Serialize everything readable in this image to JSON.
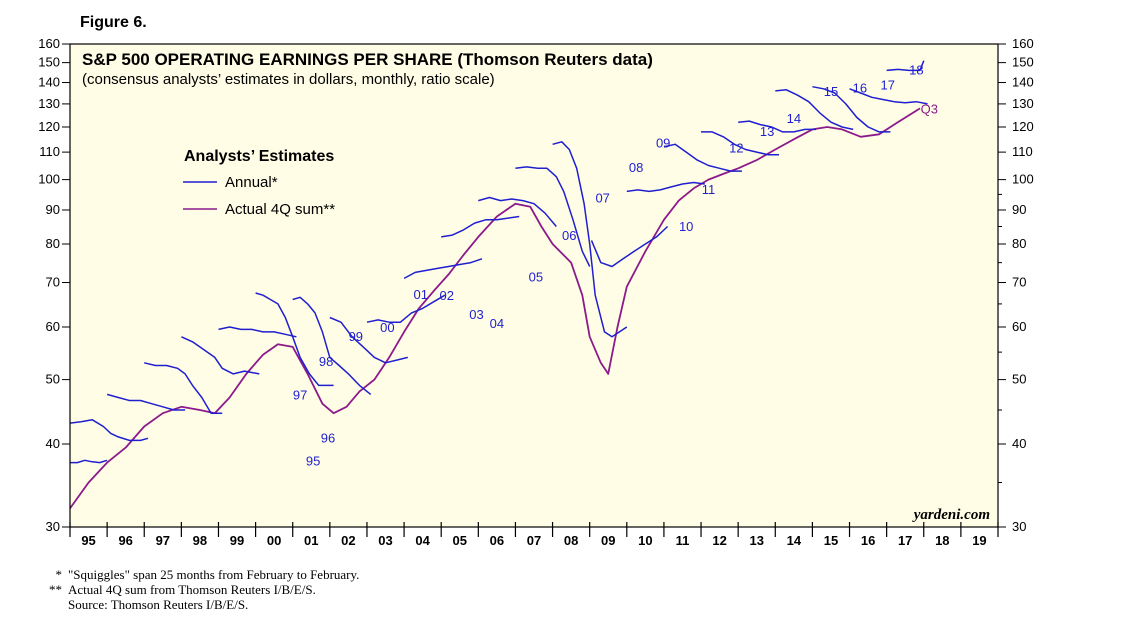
{
  "figure_label": "Figure 6.",
  "chart_data": {
    "type": "line",
    "title": "S&P 500 OPERATING EARNINGS PER SHARE (Thomson Reuters data)",
    "subtitle": "(consensus analysts’ estimates in dollars, monthly, ratio scale)",
    "legend_title": "Analysts’ Estimates",
    "legend": [
      {
        "name": "Annual*",
        "color": "#1f1fd0"
      },
      {
        "name": "Actual 4Q sum**",
        "color": "#8b1a8b"
      }
    ],
    "x_range": [
      1995.0,
      2020.0
    ],
    "y_range": [
      30,
      160
    ],
    "y_scale": "log",
    "y_ticks": [
      30,
      40,
      50,
      60,
      70,
      80,
      90,
      100,
      110,
      120,
      130,
      140,
      150,
      160
    ],
    "x_tick_labels": [
      "95",
      "96",
      "97",
      "98",
      "99",
      "00",
      "01",
      "02",
      "03",
      "04",
      "05",
      "06",
      "07",
      "08",
      "09",
      "10",
      "11",
      "12",
      "13",
      "14",
      "15",
      "16",
      "17",
      "18",
      "19"
    ],
    "watermark": "yardeni.com",
    "colors": {
      "annual": "#1f1fd0",
      "actual": "#8b1a8b",
      "plot_bg": "#fffde6"
    },
    "actual_series": {
      "name": "Actual 4Q sum**",
      "x": [
        1995.0,
        1995.5,
        1996.0,
        1996.5,
        1997.0,
        1997.5,
        1998.0,
        1998.5,
        1998.9,
        1999.3,
        1999.75,
        2000.2,
        2000.6,
        2001.0,
        2001.4,
        2001.8,
        2002.1,
        2002.45,
        2002.8,
        2003.2,
        2003.6,
        2004.0,
        2004.4,
        2004.8,
        2005.2,
        2005.6,
        2006.0,
        2006.5,
        2007.0,
        2007.4,
        2007.7,
        2008.0,
        2008.5,
        2008.8,
        2009.0,
        2009.3,
        2009.5,
        2009.75,
        2010.0,
        2010.5,
        2011.0,
        2011.4,
        2011.8,
        2012.2,
        2012.6,
        2013.0,
        2013.5,
        2014.0,
        2014.5,
        2015.0,
        2015.4,
        2015.8,
        2016.3,
        2016.8,
        2017.3,
        2017.9
      ],
      "values": [
        32,
        35,
        37.5,
        39.5,
        42.5,
        44.5,
        45.5,
        45,
        44.5,
        47,
        51,
        54.5,
        56.5,
        56,
        51,
        46,
        44.5,
        45.5,
        48,
        50,
        54,
        59,
        64,
        68,
        72,
        77,
        82,
        88,
        92,
        91,
        85,
        80,
        75,
        67,
        58,
        53,
        51,
        60,
        69,
        78,
        87,
        93,
        97,
        100,
        102,
        104,
        107,
        111,
        115,
        119,
        120,
        119,
        116,
        117,
        122,
        128
      ]
    },
    "annual_series": [
      {
        "name": "95",
        "x": [
          1995.0,
          1995.2,
          1995.4,
          1995.6,
          1995.8,
          1996.0
        ],
        "values": [
          37.5,
          37.5,
          37.8,
          37.6,
          37.5,
          37.8
        ]
      },
      {
        "name": "96",
        "x": [
          1995.0,
          1995.3,
          1995.6,
          1995.9,
          1996.1,
          1996.3,
          1996.6,
          1996.9,
          1997.1
        ],
        "values": [
          43,
          43.2,
          43.5,
          42.5,
          41.5,
          41,
          40.5,
          40.5,
          40.8
        ]
      },
      {
        "name": "97",
        "x": [
          1996.0,
          1996.3,
          1996.6,
          1996.9,
          1997.2,
          1997.5,
          1997.8,
          1998.1
        ],
        "values": [
          47.5,
          47,
          46.5,
          46.5,
          46,
          45.5,
          45,
          45
        ]
      },
      {
        "name": "98",
        "x": [
          1997.0,
          1997.3,
          1997.6,
          1997.9,
          1998.1,
          1998.3,
          1998.55,
          1998.8,
          1999.1
        ],
        "values": [
          53,
          52.5,
          52.5,
          52,
          51,
          49,
          47,
          44.5,
          44.5
        ]
      },
      {
        "name": "99",
        "x": [
          1998.0,
          1998.3,
          1998.6,
          1998.9,
          1999.1,
          1999.4,
          1999.7,
          2000.1
        ],
        "values": [
          58,
          57,
          55.5,
          54,
          52,
          51,
          51.5,
          51
        ]
      },
      {
        "name": "00",
        "x": [
          1999.0,
          1999.3,
          1999.6,
          1999.9,
          2000.2,
          2000.5,
          2000.8,
          2001.1
        ],
        "values": [
          59.5,
          60,
          59.5,
          59.5,
          59,
          59,
          58.5,
          58
        ]
      },
      {
        "name": "01",
        "x": [
          2000.0,
          2000.2,
          2000.4,
          2000.6,
          2000.8,
          2001.0,
          2001.2,
          2001.45,
          2001.7,
          2002.1
        ],
        "values": [
          67.5,
          67,
          66,
          65,
          62,
          58,
          54,
          51,
          49,
          49
        ]
      },
      {
        "name": "02",
        "x": [
          2001.0,
          2001.2,
          2001.4,
          2001.6,
          2001.8,
          2002.0,
          2002.25,
          2002.5,
          2002.8,
          2003.1
        ],
        "values": [
          66,
          66.5,
          65,
          63,
          59,
          54,
          52.5,
          51,
          49,
          47.5
        ]
      },
      {
        "name": "03",
        "x": [
          2002.0,
          2002.3,
          2002.6,
          2002.9,
          2003.2,
          2003.5,
          2003.8,
          2004.1
        ],
        "values": [
          62,
          61,
          58,
          56,
          54,
          53,
          53.5,
          54
        ]
      },
      {
        "name": "04",
        "x": [
          2003.0,
          2003.3,
          2003.6,
          2003.9,
          2004.2,
          2004.5,
          2004.8,
          2005.1
        ],
        "values": [
          61,
          61.5,
          61,
          61,
          63,
          64,
          65.5,
          67
        ]
      },
      {
        "name": "05",
        "x": [
          2004.0,
          2004.3,
          2004.6,
          2004.9,
          2005.2,
          2005.5,
          2005.8,
          2006.1
        ],
        "values": [
          71,
          72.5,
          73,
          73.5,
          74,
          74.5,
          75,
          76
        ]
      },
      {
        "name": "06",
        "x": [
          2005.0,
          2005.3,
          2005.6,
          2005.9,
          2006.2,
          2006.5,
          2006.8,
          2007.1
        ],
        "values": [
          82,
          82.5,
          84,
          86,
          87,
          87,
          87.5,
          88
        ]
      },
      {
        "name": "07",
        "x": [
          2006.0,
          2006.3,
          2006.6,
          2006.9,
          2007.2,
          2007.5,
          2007.8,
          2008.1
        ],
        "values": [
          93,
          94,
          93,
          93.5,
          93,
          92,
          89,
          85
        ]
      },
      {
        "name": "08",
        "x": [
          2007.0,
          2007.3,
          2007.6,
          2007.85,
          2008.1,
          2008.3,
          2008.55,
          2008.8,
          2009.0
        ],
        "values": [
          104,
          104.5,
          104,
          104,
          101,
          96,
          87,
          78,
          74
        ]
      },
      {
        "name": "09",
        "x": [
          2008.0,
          2008.25,
          2008.45,
          2008.65,
          2008.85,
          2009.0,
          2009.15,
          2009.4,
          2009.6,
          2010.0
        ],
        "values": [
          113,
          114,
          111,
          104,
          92,
          80,
          67,
          59,
          58,
          60
        ]
      },
      {
        "name": "10",
        "x": [
          2009.05,
          2009.3,
          2009.6,
          2009.9,
          2010.2,
          2010.5,
          2010.8,
          2011.1
        ],
        "values": [
          81,
          75,
          74,
          76,
          78,
          80,
          82,
          85
        ]
      },
      {
        "name": "11",
        "x": [
          2010.0,
          2010.3,
          2010.6,
          2010.9,
          2011.2,
          2011.5,
          2011.8,
          2012.1
        ],
        "values": [
          96,
          96.5,
          96,
          96.5,
          97.5,
          98.5,
          99,
          98.5
        ]
      },
      {
        "name": "12",
        "x": [
          2011.0,
          2011.3,
          2011.6,
          2011.9,
          2012.2,
          2012.5,
          2012.8,
          2013.1
        ],
        "values": [
          112,
          113,
          110,
          107,
          105,
          104,
          103,
          103
        ]
      },
      {
        "name": "13",
        "x": [
          2012.0,
          2012.3,
          2012.6,
          2012.9,
          2013.2,
          2013.5,
          2013.8,
          2014.1
        ],
        "values": [
          118,
          118,
          116,
          113,
          111,
          110,
          109,
          109
        ]
      },
      {
        "name": "14",
        "x": [
          2013.0,
          2013.3,
          2013.6,
          2013.9,
          2014.2,
          2014.5,
          2014.8,
          2015.1
        ],
        "values": [
          122,
          122.5,
          121,
          120,
          118,
          118,
          119,
          119
        ]
      },
      {
        "name": "15",
        "x": [
          2014.0,
          2014.3,
          2014.6,
          2014.9,
          2015.2,
          2015.5,
          2015.8,
          2016.1
        ],
        "values": [
          136,
          136.5,
          134,
          131,
          126,
          122,
          120,
          119
        ]
      },
      {
        "name": "16",
        "x": [
          2015.0,
          2015.3,
          2015.6,
          2015.9,
          2016.2,
          2016.5,
          2016.8,
          2017.1
        ],
        "values": [
          138,
          137,
          135,
          130,
          124,
          120,
          118,
          118
        ]
      },
      {
        "name": "17",
        "x": [
          2016.0,
          2016.3,
          2016.6,
          2016.9,
          2017.2,
          2017.5,
          2017.8,
          2018.1
        ],
        "values": [
          137,
          135,
          133,
          132,
          131,
          130.5,
          131,
          130
        ]
      },
      {
        "name": "18",
        "x": [
          2017.0,
          2017.3,
          2017.6,
          2017.9,
          2018.0
        ],
        "values": [
          146,
          146.5,
          146,
          146,
          151
        ]
      }
    ],
    "series_labels": [
      {
        "text": "95",
        "x": 2001.55,
        "y": 37.8
      },
      {
        "text": "96",
        "x": 2001.95,
        "y": 40.9
      },
      {
        "text": "97",
        "x": 2001.2,
        "y": 47.5
      },
      {
        "text": "98",
        "x": 2001.9,
        "y": 53.3
      },
      {
        "text": "99",
        "x": 2002.7,
        "y": 58.2
      },
      {
        "text": "00",
        "x": 2003.55,
        "y": 60.0
      },
      {
        "text": "01",
        "x": 2004.45,
        "y": 67.3
      },
      {
        "text": "02",
        "x": 2005.15,
        "y": 67.0
      },
      {
        "text": "03",
        "x": 2005.95,
        "y": 62.8
      },
      {
        "text": "04",
        "x": 2006.5,
        "y": 60.8
      },
      {
        "text": "05",
        "x": 2007.55,
        "y": 71.5
      },
      {
        "text": "06",
        "x": 2008.45,
        "y": 82.5
      },
      {
        "text": "07",
        "x": 2009.35,
        "y": 94.0
      },
      {
        "text": "08",
        "x": 2010.25,
        "y": 104.5
      },
      {
        "text": "09",
        "x": 2010.98,
        "y": 113.8
      },
      {
        "text": "10",
        "x": 2011.6,
        "y": 85.2
      },
      {
        "text": "11",
        "x": 2012.2,
        "y": 96.8
      },
      {
        "text": "12",
        "x": 2012.95,
        "y": 111.8
      },
      {
        "text": "13",
        "x": 2013.78,
        "y": 118.3
      },
      {
        "text": "14",
        "x": 2014.5,
        "y": 123.8
      },
      {
        "text": "15",
        "x": 2015.5,
        "y": 136.0
      },
      {
        "text": "16",
        "x": 2016.28,
        "y": 137.5
      },
      {
        "text": "17",
        "x": 2017.03,
        "y": 139.0
      },
      {
        "text": "18",
        "x": 2017.8,
        "y": 146.5
      },
      {
        "text": "Q3",
        "x": 2018.15,
        "y": 128.0
      }
    ]
  },
  "footnotes": [
    {
      "mark": "*",
      "text": "\"Squiggles\" span 25 months from February to February."
    },
    {
      "mark": "**",
      "text": "Actual 4Q sum from Thomson Reuters I/B/E/S."
    },
    {
      "mark": "",
      "text": "Source: Thomson Reuters I/B/E/S."
    }
  ]
}
